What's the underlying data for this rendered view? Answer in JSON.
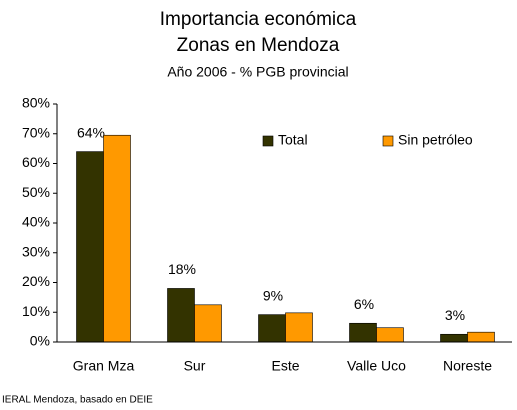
{
  "chart_data": {
    "type": "bar",
    "title": "Importancia económica",
    "subtitle_1": "Zonas en Mendoza",
    "subtitle_2": "Año 2006 - % PGB provincial",
    "source": "IERAL Mendoza, basado en DEIE",
    "categories": [
      "Gran Mza",
      "Sur",
      "Este",
      "Valle Uco",
      "Noreste"
    ],
    "series": [
      {
        "name": "Total",
        "color": "#333300",
        "values": [
          64,
          18,
          9.2,
          6.3,
          2.6
        ],
        "value_labels": [
          "64%",
          "18%",
          "9%",
          "6%",
          "3%"
        ]
      },
      {
        "name": "Sin petróleo",
        "color": "#ff9900",
        "values": [
          69.5,
          12.5,
          9.8,
          4.8,
          3.3
        ]
      }
    ],
    "ylim": [
      0,
      80
    ],
    "yticks": [
      {
        "value": 0,
        "label": "0%"
      },
      {
        "value": 10,
        "label": "10%"
      },
      {
        "value": 20,
        "label": "20%"
      },
      {
        "value": 30,
        "label": "30%"
      },
      {
        "value": 40,
        "label": "40%"
      },
      {
        "value": 50,
        "label": "50%"
      },
      {
        "value": 60,
        "label": "60%"
      },
      {
        "value": 70,
        "label": "70%"
      },
      {
        "value": 80,
        "label": "80%"
      }
    ],
    "grid": false,
    "legend": "upper right"
  }
}
